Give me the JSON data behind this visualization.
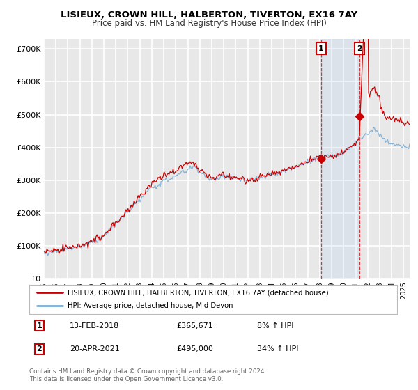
{
  "title": "LISIEUX, CROWN HILL, HALBERTON, TIVERTON, EX16 7AY",
  "subtitle": "Price paid vs. HM Land Registry's House Price Index (HPI)",
  "ylim": [
    0,
    730000
  ],
  "yticks": [
    0,
    100000,
    200000,
    300000,
    400000,
    500000,
    600000,
    700000
  ],
  "ytick_labels": [
    "£0",
    "£100K",
    "£200K",
    "£300K",
    "£400K",
    "£500K",
    "£600K",
    "£700K"
  ],
  "bg_color": "#e8e8e8",
  "grid_color": "#ffffff",
  "red_color": "#cc0000",
  "blue_color": "#7aadd4",
  "sale1_date": 2018.1,
  "sale1_price": 365671,
  "sale2_date": 2021.3,
  "sale2_price": 495000,
  "legend_line1": "LISIEUX, CROWN HILL, HALBERTON, TIVERTON, EX16 7AY (detached house)",
  "legend_line2": "HPI: Average price, detached house, Mid Devon",
  "footer": "Contains HM Land Registry data © Crown copyright and database right 2024.\nThis data is licensed under the Open Government Licence v3.0.",
  "xmin": 1995.0,
  "xmax": 2025.5,
  "title_fontsize": 9.5,
  "subtitle_fontsize": 8.5
}
